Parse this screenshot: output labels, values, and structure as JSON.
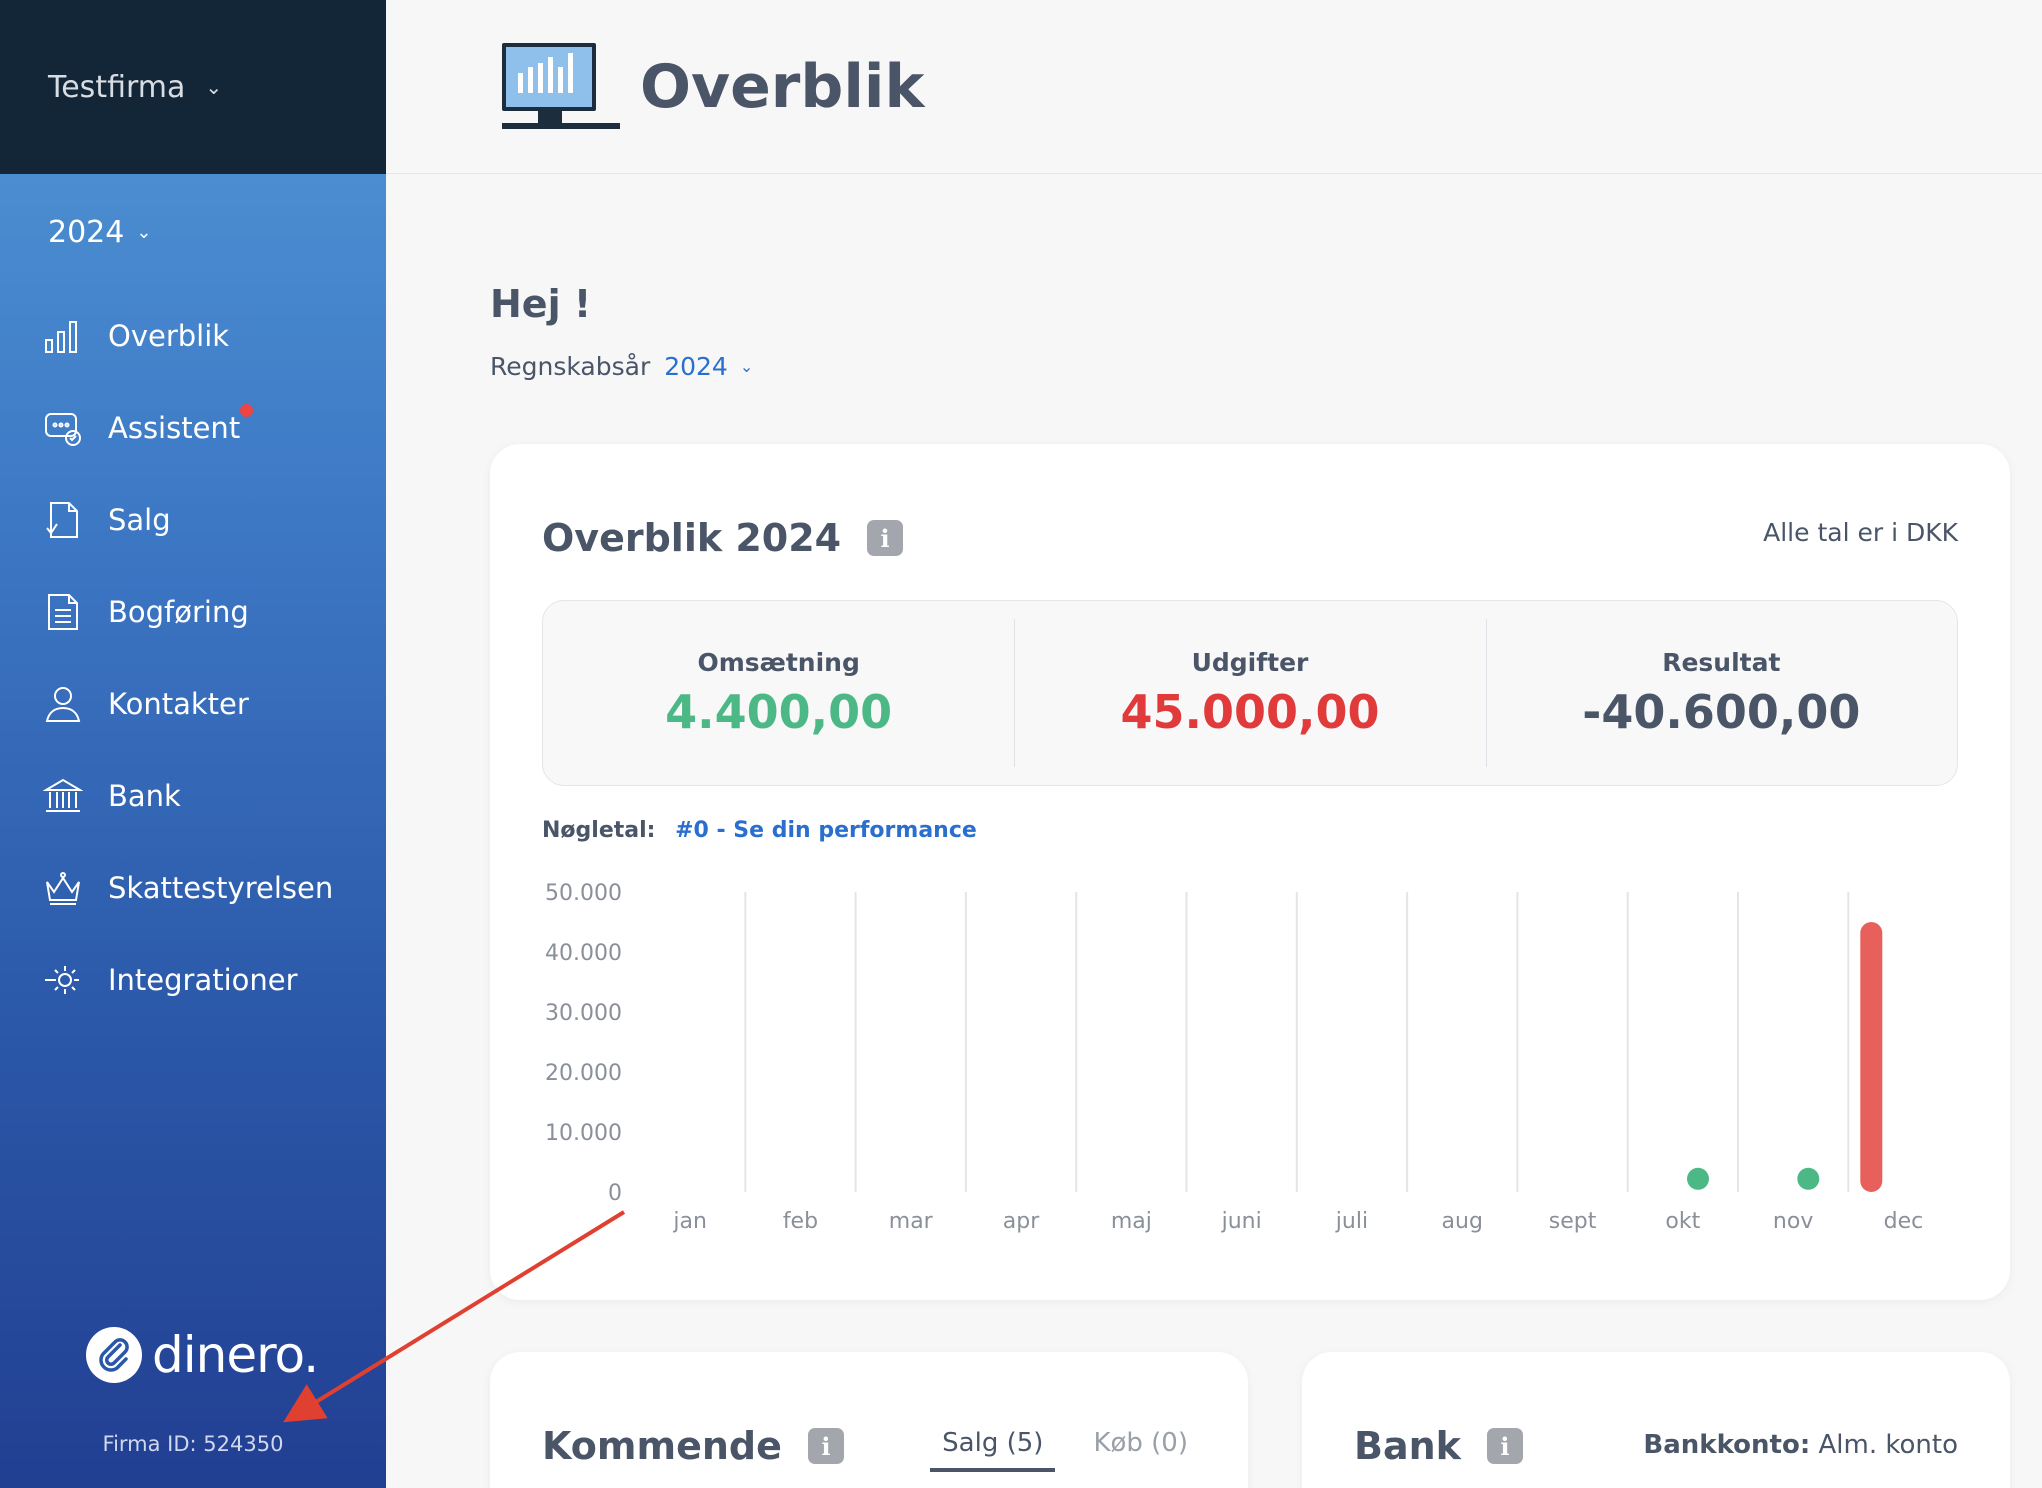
{
  "sidebar": {
    "company": "Testfirma",
    "year": "2024",
    "items": [
      {
        "label": "Overblik",
        "icon": "bar-chart-icon"
      },
      {
        "label": "Assistent",
        "icon": "assistant-chat-icon",
        "badge": true
      },
      {
        "label": "Salg",
        "icon": "document-check-icon"
      },
      {
        "label": "Bogføring",
        "icon": "ledger-document-icon"
      },
      {
        "label": "Kontakter",
        "icon": "person-icon"
      },
      {
        "label": "Bank",
        "icon": "bank-building-icon"
      },
      {
        "label": "Skattestyrelsen",
        "icon": "crown-icon"
      },
      {
        "label": "Integrationer",
        "icon": "gear-plug-icon"
      }
    ],
    "brand": "dinero.",
    "firm_id": "Firma ID: 524350"
  },
  "header": {
    "title": "Overblik",
    "icon": "monitor-chart-icon"
  },
  "main": {
    "greeting": "Hej !",
    "fiscal_year_label": "Regnskabsår",
    "fiscal_year_value": "2024"
  },
  "overview": {
    "title": "Overblik 2024",
    "currency_note": "Alle tal er i DKK",
    "kpis": [
      {
        "label": "Omsætning",
        "value": "4.400,00",
        "color": "#4cb886"
      },
      {
        "label": "Udgifter",
        "value": "45.000,00",
        "color": "#e03a3a"
      },
      {
        "label": "Resultat",
        "value": "-40.600,00",
        "color": "#4a5568"
      }
    ],
    "keyfig_label": "Nøgletal:",
    "keyfig_link": "#0 - Se din performance"
  },
  "chart_data": {
    "type": "bar",
    "categories": [
      "jan",
      "feb",
      "mar",
      "apr",
      "maj",
      "juni",
      "juli",
      "aug",
      "sept",
      "okt",
      "nov",
      "dec"
    ],
    "y_ticks": [
      "50.000",
      "40.000",
      "30.000",
      "20.000",
      "10.000",
      "0"
    ],
    "ylim": [
      0,
      50000
    ],
    "series": [
      {
        "values": [
          0,
          0,
          0,
          0,
          0,
          0,
          0,
          0,
          0,
          2200,
          2200,
          0
        ],
        "color": "#4cb886",
        "style": "dot"
      },
      {
        "values": [
          0,
          0,
          0,
          0,
          0,
          0,
          0,
          0,
          0,
          0,
          45000,
          0
        ],
        "color": "#e8605c",
        "style": "bar"
      }
    ],
    "grid": true
  },
  "upcoming": {
    "title": "Kommende",
    "tabs": [
      "Salg (5)",
      "Køb (0)"
    ]
  },
  "bank": {
    "title": "Bank",
    "account_label": "Bankkonto:",
    "account_value": "Alm. konto"
  },
  "colors": {
    "accent": "#2a6fce",
    "sidebar_dark": "#132638",
    "annotation_arrow": "#e0402f"
  }
}
